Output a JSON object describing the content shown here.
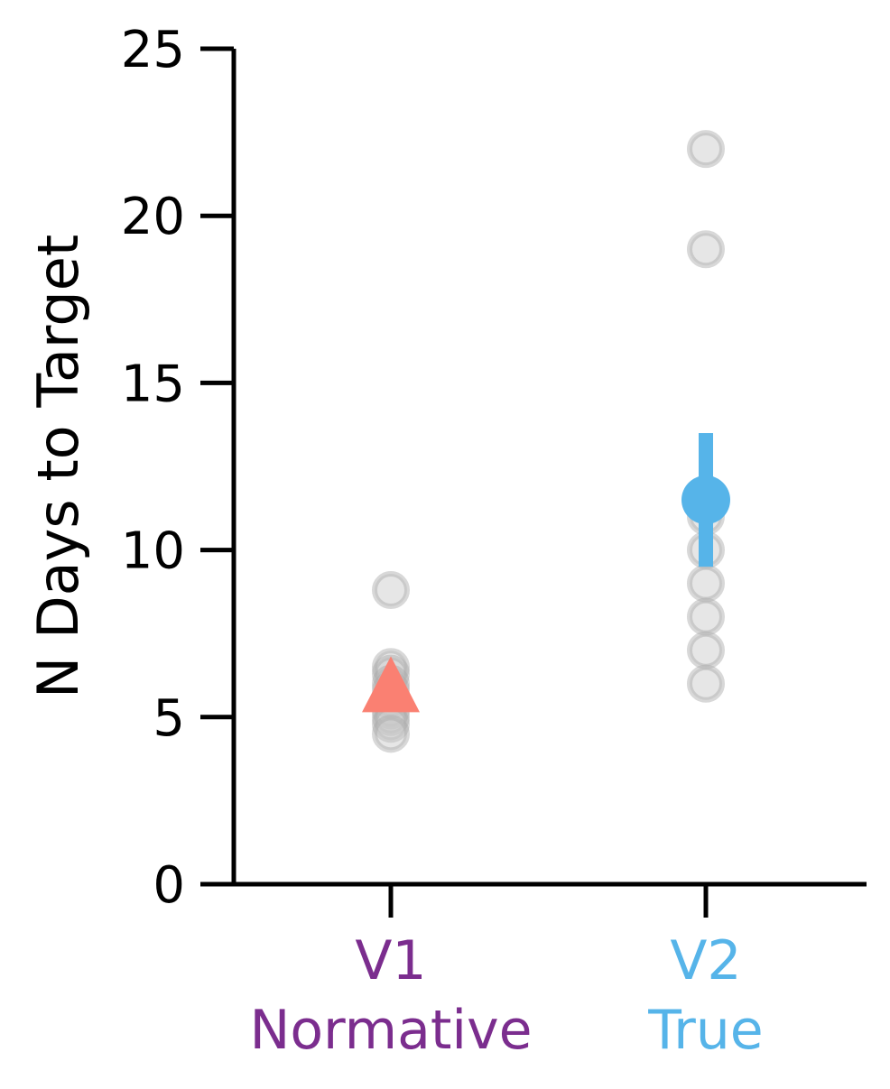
{
  "chart_data": {
    "type": "scatter",
    "ylabel": "N Days to Target",
    "ylim": [
      0,
      25
    ],
    "yticks": [
      "0",
      "5",
      "10",
      "15",
      "20",
      "25"
    ],
    "grid": false,
    "categories": [
      {
        "label": "V1",
        "sublabel": "Normative",
        "color": "#7b2d8e"
      },
      {
        "label": "V2",
        "sublabel": "True",
        "color": "#56b4e9"
      }
    ],
    "individual_points": {
      "color": "#c8c8c8",
      "values": [
        [
          8.8,
          6.5,
          6.3,
          6.0,
          5.8,
          5.5,
          5.2,
          5.0,
          4.8,
          4.5
        ],
        [
          22.0,
          19.0,
          11.0,
          10.0,
          9.0,
          8.0,
          7.0,
          6.0
        ]
      ]
    },
    "summary": [
      {
        "category": "V1",
        "marker": "triangle",
        "color": "#fa8072",
        "mean": 5.9,
        "err_low": 5.9,
        "err_high": 5.9
      },
      {
        "category": "V2",
        "marker": "circle",
        "color": "#56b4e9",
        "mean": 11.5,
        "err_low": 9.5,
        "err_high": 13.5
      }
    ]
  }
}
